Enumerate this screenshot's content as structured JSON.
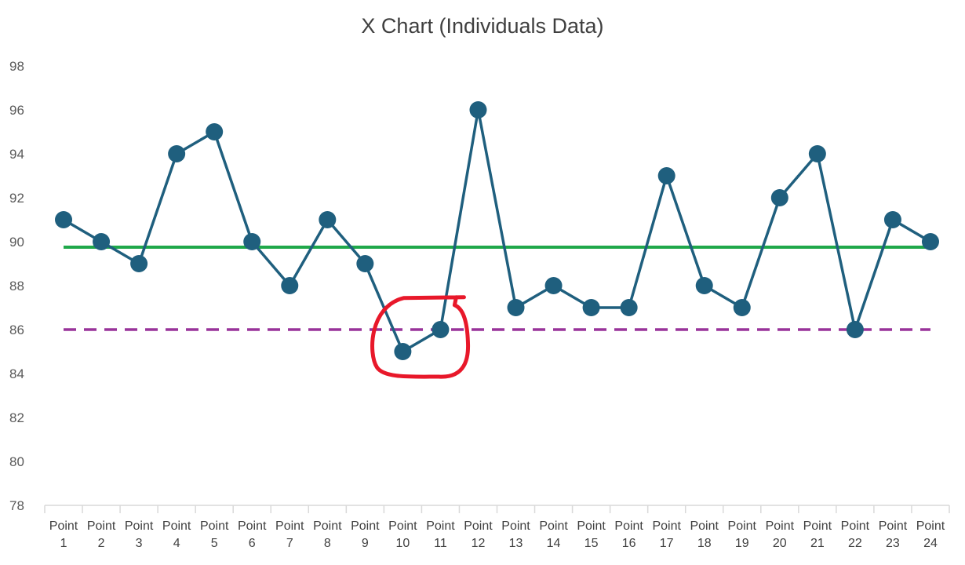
{
  "chart_data": {
    "type": "line",
    "title": "X Chart (Individuals Data)",
    "xlabel": "",
    "ylabel": "",
    "categories": [
      "Point 1",
      "Point 2",
      "Point 3",
      "Point 4",
      "Point 5",
      "Point 6",
      "Point 7",
      "Point 8",
      "Point 9",
      "Point 10",
      "Point 11",
      "Point 12",
      "Point 13",
      "Point 14",
      "Point 15",
      "Point 16",
      "Point 17",
      "Point 18",
      "Point 19",
      "Point 20",
      "Point 21",
      "Point 22",
      "Point 23",
      "Point 24"
    ],
    "category_lines": [
      [
        "Point",
        "1"
      ],
      [
        "Point",
        "2"
      ],
      [
        "Point",
        "3"
      ],
      [
        "Point",
        "4"
      ],
      [
        "Point",
        "5"
      ],
      [
        "Point",
        "6"
      ],
      [
        "Point",
        "7"
      ],
      [
        "Point",
        "8"
      ],
      [
        "Point",
        "9"
      ],
      [
        "Point",
        "10"
      ],
      [
        "Point",
        "11"
      ],
      [
        "Point",
        "12"
      ],
      [
        "Point",
        "13"
      ],
      [
        "Point",
        "14"
      ],
      [
        "Point",
        "15"
      ],
      [
        "Point",
        "16"
      ],
      [
        "Point",
        "17"
      ],
      [
        "Point",
        "18"
      ],
      [
        "Point",
        "19"
      ],
      [
        "Point",
        "20"
      ],
      [
        "Point",
        "21"
      ],
      [
        "Point",
        "22"
      ],
      [
        "Point",
        "23"
      ],
      [
        "Point",
        "24"
      ]
    ],
    "series": [
      {
        "values": [
          91,
          90,
          89,
          94,
          95,
          90,
          88,
          91,
          89,
          85,
          86,
          96,
          87,
          88,
          87,
          87,
          93,
          88,
          87,
          92,
          94,
          86,
          91,
          90
        ],
        "color": "#1f5f7e",
        "marker": "circle"
      },
      {
        "values": [
          89.75,
          89.75,
          89.75,
          89.75,
          89.75,
          89.75,
          89.75,
          89.75,
          89.75,
          89.75,
          89.75,
          89.75,
          89.75,
          89.75,
          89.75,
          89.75,
          89.75,
          89.75,
          89.75,
          89.75,
          89.75,
          89.75,
          89.75,
          89.75
        ],
        "color": "#1fa84a",
        "style": "solid"
      },
      {
        "values": [
          86,
          86,
          86,
          86,
          86,
          86,
          86,
          86,
          86,
          86,
          86,
          86,
          86,
          86,
          86,
          86,
          86,
          86,
          86,
          86,
          86,
          86,
          86,
          86
        ],
        "color": "#99339a",
        "style": "dashed"
      }
    ],
    "ylim": [
      78,
      98
    ],
    "yticks": [
      "78",
      "80",
      "82",
      "84",
      "86",
      "88",
      "90",
      "92",
      "94",
      "96",
      "98"
    ],
    "grid": false,
    "annotation": {
      "type": "hand-drawn circle",
      "around": [
        "Point 10",
        "Point 11"
      ],
      "color": "#e8182a"
    }
  }
}
